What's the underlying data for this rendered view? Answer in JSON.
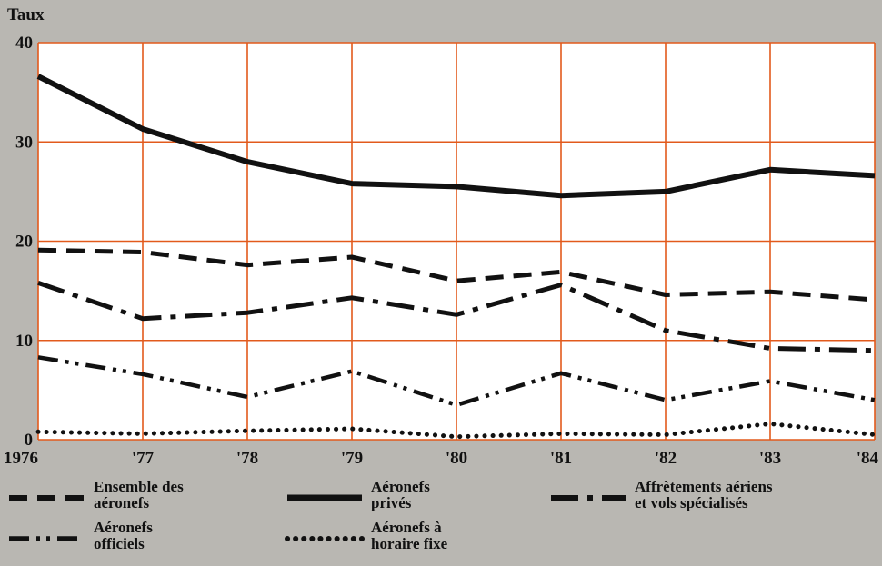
{
  "chart_data": {
    "type": "line",
    "ylabel": "Taux",
    "xlabel": "",
    "categories": [
      "1976",
      "'77",
      "'78",
      "'79",
      "'80",
      "'81",
      "'82",
      "'83",
      "'84"
    ],
    "yticks": [
      0,
      10,
      20,
      30,
      40
    ],
    "ylim": [
      0,
      40
    ],
    "grid": true,
    "legend_position": "bottom",
    "colors": {
      "grid": "#e25a1c",
      "plot_background": "#ffffff",
      "page_background": "#b9b7b2",
      "series": "#111111"
    },
    "series": [
      {
        "key": "ensemble",
        "name_lines": [
          "Ensemble des",
          "aéronefs"
        ],
        "style": "dashed",
        "values": [
          19.1,
          18.9,
          17.6,
          18.4,
          16.0,
          16.9,
          14.6,
          14.9,
          14.1
        ]
      },
      {
        "key": "prives",
        "name_lines": [
          "Aéronefs",
          "privés"
        ],
        "style": "solid",
        "values": [
          36.6,
          31.3,
          28.0,
          25.8,
          25.5,
          24.6,
          25.0,
          27.2,
          26.6
        ]
      },
      {
        "key": "affretements",
        "name_lines": [
          "Affrètements aériens",
          "et vols spécialisés"
        ],
        "style": "dash-dot",
        "values": [
          15.8,
          12.2,
          12.8,
          14.3,
          12.6,
          15.6,
          11.0,
          9.2,
          9.0
        ]
      },
      {
        "key": "officiels",
        "name_lines": [
          "Aéronefs",
          "officiels"
        ],
        "style": "dash-dot-dot",
        "values": [
          8.3,
          6.6,
          4.3,
          6.9,
          3.5,
          6.7,
          4.0,
          5.9,
          4.0
        ]
      },
      {
        "key": "horaire",
        "name_lines": [
          "Aéronefs à",
          "horaire fixe"
        ],
        "style": "dotted",
        "values": [
          0.8,
          0.6,
          0.9,
          1.1,
          0.3,
          0.6,
          0.5,
          1.6,
          0.5
        ]
      }
    ]
  }
}
